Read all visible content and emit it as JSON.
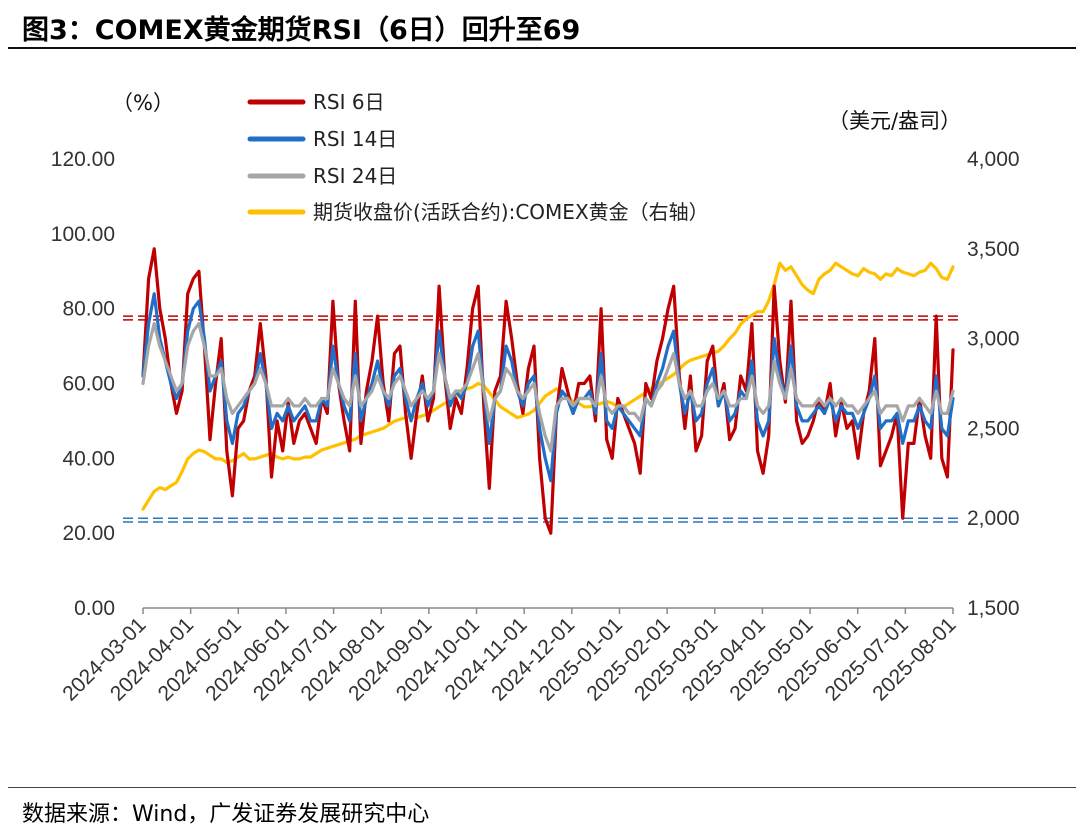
{
  "page": {
    "title": "图3：COMEX黄金期货RSI（6日）回升至69",
    "source": "数据来源：Wind，广发证券发展研究中心"
  },
  "chart_data": {
    "type": "line",
    "title": "图3：COMEX黄金期货RSI（6日）回升至69",
    "left_unit": "（%）",
    "right_unit": "（美元/盎司）",
    "left_axis": {
      "ticks": [
        "0.00",
        "20.00",
        "40.00",
        "60.00",
        "80.00",
        "100.00",
        "120.00"
      ],
      "ylim": [
        0,
        120
      ]
    },
    "right_axis": {
      "ticks": [
        "1,500",
        "2,000",
        "2,500",
        "3,000",
        "3,500",
        "4,000"
      ],
      "ylim": [
        1500,
        4000
      ]
    },
    "x_labels": [
      "2024-03-01",
      "2024-04-01",
      "2024-05-01",
      "2024-06-01",
      "2024-07-01",
      "2024-08-01",
      "2024-09-01",
      "2024-10-01",
      "2024-11-01",
      "2024-12-01",
      "2025-01-01",
      "2025-02-01",
      "2025-03-01",
      "2025-04-01",
      "2025-05-01",
      "2025-06-01",
      "2025-07-01",
      "2025-08-01"
    ],
    "reference_lines": {
      "overbought": [
        77,
        78
      ],
      "oversold": [
        23,
        24
      ]
    },
    "grid": false,
    "legend_position": "top-left",
    "series": [
      {
        "name": "RSI 6日",
        "axis": "left",
        "color": "#c00000",
        "values": [
          62,
          88,
          96,
          80,
          72,
          60,
          52,
          58,
          84,
          88,
          90,
          70,
          45,
          60,
          72,
          42,
          30,
          48,
          50,
          58,
          62,
          76,
          62,
          35,
          50,
          42,
          55,
          44,
          50,
          52,
          48,
          44,
          56,
          52,
          82,
          60,
          50,
          42,
          82,
          44,
          58,
          66,
          78,
          60,
          50,
          68,
          70,
          52,
          40,
          52,
          62,
          50,
          56,
          86,
          62,
          48,
          56,
          52,
          64,
          80,
          86,
          54,
          32,
          58,
          62,
          82,
          72,
          60,
          52,
          64,
          70,
          40,
          24,
          20,
          52,
          64,
          58,
          52,
          60,
          60,
          62,
          50,
          80,
          45,
          40,
          56,
          52,
          48,
          44,
          36,
          60,
          56,
          66,
          72,
          80,
          86,
          62,
          48,
          62,
          42,
          46,
          66,
          70,
          54,
          60,
          45,
          48,
          62,
          58,
          76,
          42,
          36,
          46,
          86,
          66,
          55,
          82,
          50,
          44,
          46,
          50,
          56,
          52,
          60,
          46,
          55,
          48,
          50,
          40,
          52,
          58,
          72,
          38,
          42,
          46,
          52,
          24,
          44,
          44,
          56,
          46,
          40,
          78,
          40,
          35,
          69
        ]
      },
      {
        "name": "RSI 14日",
        "axis": "left",
        "color": "#1f6fc8",
        "values": [
          62,
          76,
          84,
          72,
          66,
          60,
          56,
          60,
          74,
          80,
          82,
          72,
          58,
          62,
          66,
          50,
          44,
          52,
          54,
          58,
          60,
          68,
          60,
          48,
          52,
          50,
          54,
          50,
          52,
          54,
          50,
          50,
          56,
          54,
          70,
          60,
          54,
          50,
          68,
          50,
          56,
          60,
          66,
          58,
          54,
          62,
          64,
          56,
          50,
          56,
          60,
          54,
          58,
          74,
          62,
          54,
          58,
          56,
          60,
          70,
          74,
          58,
          44,
          56,
          58,
          70,
          66,
          58,
          54,
          60,
          62,
          48,
          40,
          34,
          52,
          58,
          56,
          52,
          56,
          56,
          58,
          52,
          68,
          50,
          48,
          54,
          52,
          50,
          48,
          46,
          56,
          54,
          60,
          64,
          70,
          74,
          60,
          52,
          58,
          50,
          52,
          60,
          64,
          54,
          58,
          50,
          52,
          58,
          56,
          66,
          50,
          46,
          50,
          72,
          62,
          56,
          70,
          54,
          50,
          50,
          52,
          54,
          52,
          56,
          50,
          54,
          52,
          52,
          48,
          52,
          56,
          62,
          48,
          50,
          50,
          52,
          44,
          50,
          50,
          54,
          50,
          48,
          62,
          48,
          46,
          56
        ]
      },
      {
        "name": "RSI 24日",
        "axis": "left",
        "color": "#a6a6a6",
        "values": [
          60,
          70,
          76,
          70,
          66,
          62,
          58,
          60,
          70,
          74,
          76,
          70,
          62,
          62,
          64,
          56,
          52,
          54,
          56,
          58,
          60,
          64,
          60,
          54,
          54,
          54,
          56,
          54,
          54,
          56,
          54,
          54,
          56,
          56,
          64,
          60,
          56,
          54,
          62,
          54,
          56,
          58,
          62,
          58,
          56,
          60,
          62,
          58,
          54,
          56,
          58,
          56,
          58,
          68,
          62,
          56,
          58,
          58,
          60,
          64,
          68,
          58,
          50,
          56,
          58,
          64,
          62,
          58,
          56,
          58,
          60,
          52,
          46,
          42,
          54,
          56,
          56,
          54,
          56,
          56,
          56,
          54,
          62,
          54,
          52,
          54,
          54,
          52,
          52,
          50,
          56,
          54,
          58,
          60,
          64,
          68,
          60,
          56,
          58,
          54,
          54,
          58,
          60,
          56,
          58,
          54,
          54,
          56,
          56,
          62,
          54,
          52,
          54,
          66,
          60,
          56,
          64,
          56,
          54,
          54,
          54,
          56,
          54,
          56,
          54,
          56,
          54,
          54,
          52,
          54,
          56,
          58,
          52,
          54,
          54,
          54,
          50,
          54,
          54,
          56,
          54,
          52,
          58,
          52,
          52,
          58
        ]
      },
      {
        "name": "期货收盘价(活跃合约):COMEX黄金（右轴）",
        "axis": "right",
        "color": "#ffc000",
        "values": [
          2050,
          2100,
          2150,
          2170,
          2160,
          2180,
          2200,
          2260,
          2330,
          2360,
          2380,
          2370,
          2350,
          2330,
          2330,
          2310,
          2320,
          2340,
          2360,
          2330,
          2330,
          2340,
          2350,
          2360,
          2340,
          2330,
          2340,
          2330,
          2330,
          2340,
          2340,
          2360,
          2380,
          2390,
          2400,
          2410,
          2420,
          2430,
          2440,
          2460,
          2470,
          2480,
          2490,
          2500,
          2520,
          2540,
          2550,
          2560,
          2570,
          2560,
          2570,
          2580,
          2600,
          2620,
          2640,
          2660,
          2680,
          2700,
          2720,
          2730,
          2750,
          2740,
          2700,
          2660,
          2620,
          2600,
          2580,
          2560,
          2570,
          2580,
          2600,
          2640,
          2680,
          2700,
          2720,
          2700,
          2680,
          2650,
          2640,
          2620,
          2620,
          2630,
          2640,
          2650,
          2640,
          2620,
          2620,
          2640,
          2660,
          2680,
          2700,
          2720,
          2740,
          2760,
          2780,
          2800,
          2830,
          2860,
          2880,
          2890,
          2900,
          2910,
          2920,
          2930,
          2960,
          3000,
          3030,
          3080,
          3110,
          3130,
          3150,
          3150,
          3210,
          3300,
          3420,
          3380,
          3400,
          3350,
          3300,
          3270,
          3250,
          3330,
          3360,
          3380,
          3420,
          3400,
          3380,
          3360,
          3350,
          3390,
          3370,
          3360,
          3330,
          3360,
          3350,
          3390,
          3370,
          3360,
          3350,
          3370,
          3380,
          3420,
          3390,
          3340,
          3330,
          3400
        ]
      }
    ]
  }
}
